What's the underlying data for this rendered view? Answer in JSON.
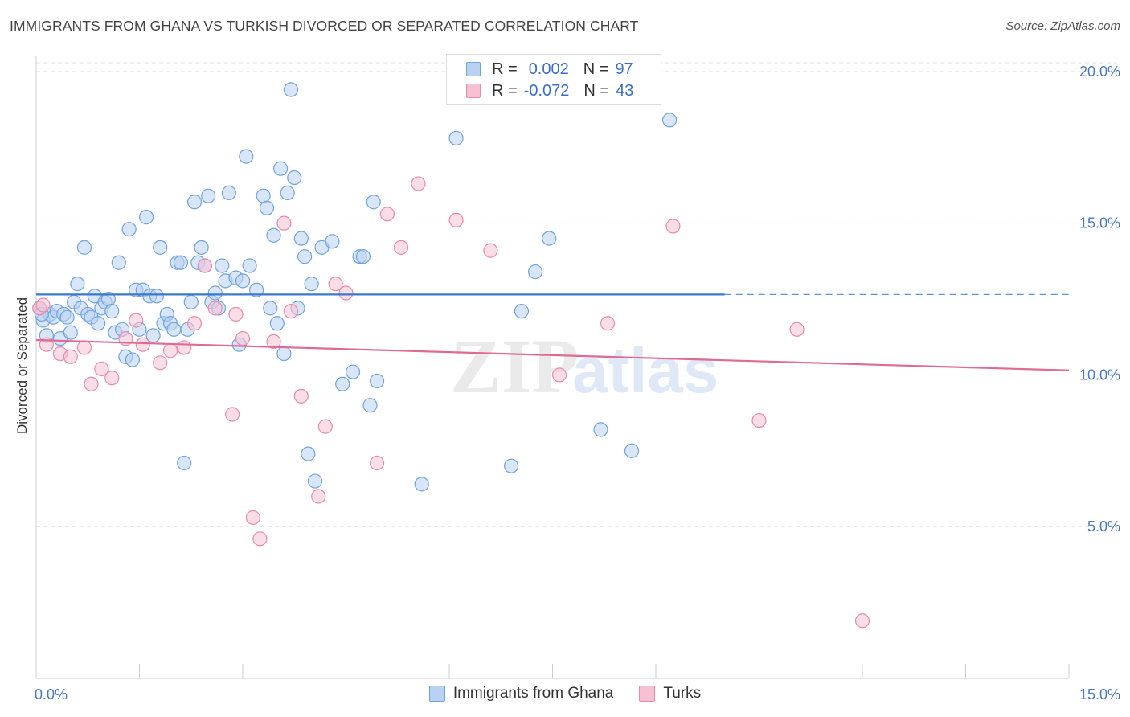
{
  "header": {
    "title": "IMMIGRANTS FROM GHANA VS TURKISH DIVORCED OR SEPARATED CORRELATION CHART",
    "source": "Source: ZipAtlas.com"
  },
  "watermark": {
    "part1": "ZIP",
    "part2": "atlas"
  },
  "legend_top": {
    "rows": [
      {
        "r_label": "R =",
        "r_value": "0.002",
        "n_label": "N =",
        "n_value": "97"
      },
      {
        "r_label": "R =",
        "r_value": "-0.072",
        "n_label": "N =",
        "n_value": "43"
      }
    ]
  },
  "chart_data": {
    "type": "scatter",
    "title": "IMMIGRANTS FROM GHANA VS TURKISH DIVORCED OR SEPARATED CORRELATION CHART",
    "xlabel": "",
    "ylabel": "Divorced or Separated",
    "xlim": [
      0,
      15
    ],
    "ylim": [
      0,
      20.5
    ],
    "x_tick_labels": [
      {
        "value": 0,
        "label": "0.0%"
      },
      {
        "value": 15,
        "label": "15.0%"
      }
    ],
    "y_tick_labels": [
      {
        "value": 5,
        "label": "5.0%"
      },
      {
        "value": 10,
        "label": "10.0%"
      },
      {
        "value": 15,
        "label": "15.0%"
      },
      {
        "value": 20,
        "label": "20.0%"
      }
    ],
    "grid": "horizontal-dashed",
    "legend_position": "bottom",
    "series": [
      {
        "name": "Immigrants from Ghana",
        "color": "#6fa3e0",
        "fill": "#b9d2f3",
        "trend": {
          "x": [
            0,
            10.0
          ],
          "y": [
            12.65,
            12.65
          ],
          "dashed_to": 15.0,
          "color": "#3a78c8"
        },
        "points": [
          [
            0.05,
            12.2
          ],
          [
            0.1,
            11.8
          ],
          [
            0.15,
            11.3
          ],
          [
            0.2,
            12.0
          ],
          [
            0.25,
            11.9
          ],
          [
            0.3,
            12.1
          ],
          [
            0.35,
            11.2
          ],
          [
            0.4,
            12.0
          ],
          [
            0.45,
            11.9
          ],
          [
            0.5,
            11.4
          ],
          [
            0.55,
            12.4
          ],
          [
            0.6,
            13.0
          ],
          [
            0.65,
            12.2
          ],
          [
            0.7,
            14.2
          ],
          [
            0.75,
            12.0
          ],
          [
            0.8,
            11.9
          ],
          [
            0.85,
            12.6
          ],
          [
            0.9,
            11.7
          ],
          [
            0.95,
            12.2
          ],
          [
            1.0,
            12.4
          ],
          [
            1.05,
            12.5
          ],
          [
            1.1,
            12.1
          ],
          [
            1.15,
            11.4
          ],
          [
            1.2,
            13.7
          ],
          [
            1.25,
            11.5
          ],
          [
            1.3,
            10.6
          ],
          [
            1.35,
            14.8
          ],
          [
            1.4,
            10.5
          ],
          [
            1.45,
            12.8
          ],
          [
            1.5,
            11.5
          ],
          [
            1.55,
            12.8
          ],
          [
            1.6,
            15.2
          ],
          [
            1.65,
            12.6
          ],
          [
            1.7,
            11.3
          ],
          [
            1.75,
            12.6
          ],
          [
            1.8,
            14.2
          ],
          [
            1.85,
            11.7
          ],
          [
            1.9,
            12.0
          ],
          [
            1.95,
            11.7
          ],
          [
            2.0,
            11.5
          ],
          [
            2.05,
            13.7
          ],
          [
            2.1,
            13.7
          ],
          [
            2.15,
            7.1
          ],
          [
            2.2,
            11.5
          ],
          [
            2.25,
            12.4
          ],
          [
            2.3,
            15.7
          ],
          [
            2.35,
            13.7
          ],
          [
            2.4,
            14.2
          ],
          [
            2.45,
            13.6
          ],
          [
            2.5,
            15.9
          ],
          [
            2.55,
            12.4
          ],
          [
            2.6,
            12.7
          ],
          [
            2.65,
            12.2
          ],
          [
            2.7,
            13.6
          ],
          [
            2.75,
            13.1
          ],
          [
            2.8,
            16.0
          ],
          [
            2.9,
            13.2
          ],
          [
            2.95,
            11.0
          ],
          [
            3.0,
            13.1
          ],
          [
            3.05,
            17.2
          ],
          [
            3.1,
            13.6
          ],
          [
            3.2,
            12.8
          ],
          [
            3.3,
            15.9
          ],
          [
            3.35,
            15.5
          ],
          [
            3.4,
            12.2
          ],
          [
            3.45,
            14.6
          ],
          [
            3.5,
            11.7
          ],
          [
            3.55,
            16.8
          ],
          [
            3.6,
            10.7
          ],
          [
            3.65,
            16.0
          ],
          [
            3.7,
            19.4
          ],
          [
            3.75,
            16.5
          ],
          [
            3.8,
            12.2
          ],
          [
            3.85,
            14.5
          ],
          [
            3.9,
            13.9
          ],
          [
            3.95,
            7.4
          ],
          [
            4.0,
            13.0
          ],
          [
            4.05,
            6.5
          ],
          [
            4.15,
            14.2
          ],
          [
            4.3,
            14.4
          ],
          [
            4.45,
            9.7
          ],
          [
            4.6,
            10.1
          ],
          [
            4.7,
            13.9
          ],
          [
            4.75,
            13.9
          ],
          [
            4.85,
            9.0
          ],
          [
            4.9,
            15.7
          ],
          [
            4.95,
            9.8
          ],
          [
            5.6,
            6.4
          ],
          [
            6.1,
            17.8
          ],
          [
            6.9,
            7.0
          ],
          [
            7.05,
            12.1
          ],
          [
            7.25,
            13.4
          ],
          [
            7.45,
            14.5
          ],
          [
            8.2,
            8.2
          ],
          [
            8.65,
            7.5
          ],
          [
            9.2,
            18.4
          ],
          [
            0.08,
            12.0
          ]
        ]
      },
      {
        "name": "Turks",
        "color": "#e88aa8",
        "fill": "#f6c2d3",
        "trend": {
          "x": [
            0,
            15.0
          ],
          "y": [
            11.15,
            10.15
          ],
          "color": "#e06a93"
        },
        "points": [
          [
            0.05,
            12.2
          ],
          [
            0.15,
            11.0
          ],
          [
            0.35,
            10.7
          ],
          [
            0.5,
            10.6
          ],
          [
            0.7,
            10.9
          ],
          [
            0.8,
            9.7
          ],
          [
            0.95,
            10.2
          ],
          [
            1.1,
            9.9
          ],
          [
            1.3,
            11.2
          ],
          [
            1.45,
            11.8
          ],
          [
            1.55,
            11.0
          ],
          [
            1.8,
            10.4
          ],
          [
            1.95,
            10.8
          ],
          [
            2.15,
            10.9
          ],
          [
            2.3,
            11.7
          ],
          [
            2.45,
            13.6
          ],
          [
            2.6,
            12.2
          ],
          [
            2.85,
            8.7
          ],
          [
            2.9,
            12.0
          ],
          [
            3.0,
            11.2
          ],
          [
            3.15,
            5.3
          ],
          [
            3.25,
            4.6
          ],
          [
            3.45,
            11.1
          ],
          [
            3.6,
            15.0
          ],
          [
            3.7,
            12.1
          ],
          [
            3.85,
            9.3
          ],
          [
            4.1,
            6.0
          ],
          [
            4.2,
            8.3
          ],
          [
            4.35,
            13.0
          ],
          [
            4.5,
            12.7
          ],
          [
            4.95,
            7.1
          ],
          [
            5.1,
            15.3
          ],
          [
            5.3,
            14.2
          ],
          [
            5.55,
            16.3
          ],
          [
            6.1,
            15.1
          ],
          [
            6.6,
            14.1
          ],
          [
            7.6,
            10.0
          ],
          [
            8.3,
            11.7
          ],
          [
            9.25,
            14.9
          ],
          [
            10.5,
            8.5
          ],
          [
            11.05,
            11.5
          ],
          [
            12.0,
            1.9
          ],
          [
            0.1,
            12.3
          ]
        ]
      }
    ]
  },
  "legend_bottom": {
    "items": [
      {
        "label": "Immigrants from Ghana"
      },
      {
        "label": "Turks"
      }
    ]
  }
}
